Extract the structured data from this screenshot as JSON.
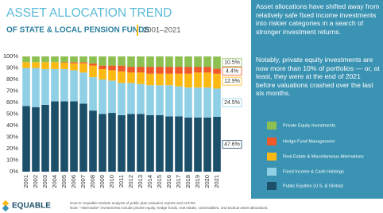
{
  "chart_data": {
    "type": "stacked_bar",
    "title": "ASSET ALLOCATION TREND",
    "subtitle": "OF STATE & LOCAL PENSION FUNDS",
    "date_range": "2001–2021",
    "annotations": [
      "Asset allocations have shifted away from relatively safe fixed income investments into riskier categories in a search of stronger investment returns.",
      "Notably, private equity investments are now more than 10% of portfolios — or, at least, they were at the end of 2021 before valuations crashed over the last six months."
    ],
    "logo": "EQUABLE",
    "source": "Source: Equable Institute analysis of public plan valuation reports and ACFRs.",
    "note": "Note: \"Alternative\" investments include private equity, hedge funds, real estate, commodities, and tactical asset allocations.",
    "categories": [
      "2001",
      "2002",
      "2003",
      "2004",
      "2005",
      "2006",
      "2007",
      "2008",
      "2009",
      "2010",
      "2011",
      "2012",
      "2013",
      "2014",
      "2015",
      "2016",
      "2017",
      "2018",
      "2019",
      "2020",
      "2021"
    ],
    "series": [
      {
        "name": "Private Equity Investments",
        "color": "#8cc152",
        "values": [
          5,
          5,
          5,
          5,
          5,
          5,
          5,
          6,
          8,
          8,
          8,
          9,
          9,
          9,
          9,
          9,
          9,
          9,
          9,
          9,
          10.5
        ],
        "value_labels": [
          null,
          null,
          null,
          null,
          null,
          null,
          null,
          null,
          null,
          null,
          null,
          null,
          null,
          null,
          null,
          null,
          null,
          null,
          null,
          null,
          "10.5%"
        ]
      },
      {
        "name": "Hedge Fund Management",
        "color": "#f05a28",
        "values": [
          0,
          0,
          0,
          0,
          0.5,
          1,
          1,
          2,
          3,
          4,
          5,
          5,
          5,
          6,
          6,
          6,
          6,
          6,
          5,
          5,
          4.4
        ],
        "value_labels": [
          null,
          null,
          null,
          null,
          null,
          null,
          null,
          null,
          null,
          null,
          null,
          null,
          null,
          null,
          null,
          null,
          null,
          null,
          null,
          null,
          "4.4%"
        ]
      },
      {
        "name": "Real Estate & Miscellaneous Alternatives",
        "color": "#fdb913",
        "values": [
          5,
          5,
          6,
          6,
          5.5,
          6,
          8,
          10,
          9,
          9,
          10,
          9,
          10,
          10,
          10,
          10,
          11,
          12,
          13,
          13,
          12.9
        ],
        "value_labels": [
          null,
          null,
          null,
          null,
          null,
          null,
          null,
          null,
          null,
          null,
          null,
          null,
          null,
          null,
          null,
          null,
          null,
          null,
          null,
          null,
          "12.9%"
        ]
      },
      {
        "name": "Fixed Income & Cash Holdings",
        "color": "#8fd0e6",
        "values": [
          33,
          34,
          31,
          28,
          28,
          27,
          27,
          29,
          30,
          28,
          28,
          27,
          26,
          26,
          26,
          27,
          26,
          26,
          26,
          26,
          24.5
        ],
        "value_labels": [
          null,
          null,
          null,
          null,
          null,
          null,
          null,
          null,
          null,
          null,
          null,
          null,
          null,
          null,
          null,
          null,
          null,
          null,
          null,
          null,
          "24.5%"
        ]
      },
      {
        "name": "Public Equities (U.S. & Global)",
        "color": "#1c4f6a",
        "values": [
          57,
          56,
          58,
          61,
          61,
          61,
          59,
          53,
          50,
          51,
          49,
          50,
          50,
          49,
          49,
          48,
          48,
          47,
          47,
          47,
          47.6
        ],
        "value_labels": [
          null,
          null,
          null,
          null,
          null,
          null,
          null,
          null,
          null,
          null,
          null,
          null,
          null,
          null,
          null,
          null,
          null,
          null,
          null,
          null,
          "47.6%"
        ]
      }
    ],
    "ylim": [
      0,
      100
    ],
    "yticks": [
      {
        "value": 0,
        "label": "0%"
      },
      {
        "value": 10,
        "label": "10%"
      },
      {
        "value": 20,
        "label": "20%"
      },
      {
        "value": 30,
        "label": "30%"
      },
      {
        "value": 40,
        "label": "40%"
      },
      {
        "value": 50,
        "label": "50%"
      },
      {
        "value": 60,
        "label": "60%"
      },
      {
        "value": 70,
        "label": "70%"
      },
      {
        "value": 80,
        "label": "80%"
      },
      {
        "value": 90,
        "label": "90%"
      },
      {
        "value": 100,
        "label": "100%"
      }
    ],
    "grid": false
  }
}
